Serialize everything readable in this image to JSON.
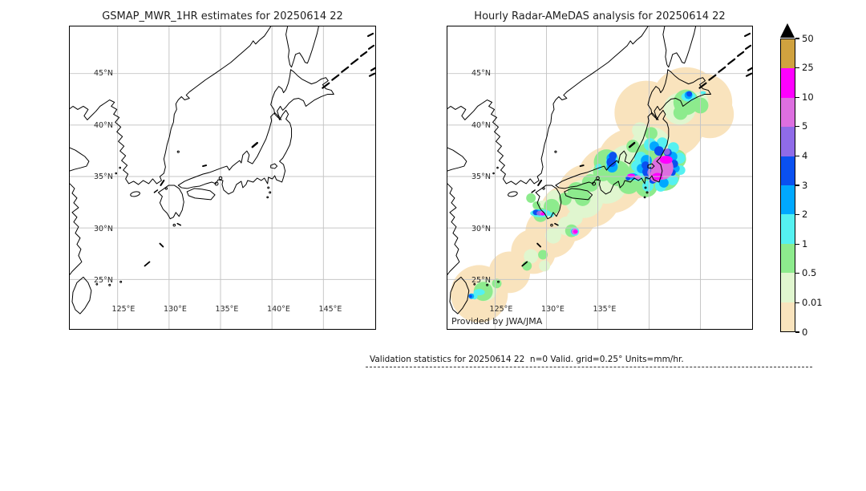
{
  "titles": {
    "left": "GSMAP_MWR_1HR estimates for 20250614 22",
    "right": "Hourly Radar-AMeDAS analysis for 20250614 22"
  },
  "maps": {
    "lat_labels": [
      "45°N",
      "40°N",
      "35°N",
      "30°N",
      "25°N"
    ],
    "lon_labels_left": [
      "125°E",
      "130°E",
      "135°E",
      "140°E",
      "145°E"
    ],
    "lon_labels_right": [
      "125°E",
      "130°E",
      "135°E"
    ],
    "credit": "Provided by JWA/JMA"
  },
  "colorbar": {
    "tick_labels": [
      "50",
      "25",
      "10",
      "5",
      "4",
      "3",
      "2",
      "1",
      "0.5",
      "0.01",
      "0"
    ],
    "segment_colors_top_to_bottom": [
      "#d0a23f",
      "#ff00ff",
      "#dd6fe0",
      "#8f6be8",
      "#0a50f0",
      "#00a8ff",
      "#55f1f1",
      "#8deb8d",
      "#e0f6cf",
      "#f9e3bd"
    ],
    "over_marker": "black-triangle"
  },
  "footer": {
    "validation_text": "Validation statistics for 20250614 22  n=0 Valid. grid=0.25° Units=mm/hr."
  },
  "chart_data": {
    "type": "heatmap",
    "panels": [
      {
        "title": "GSMAP_MWR_1HR estimates for 20250614 22",
        "content": "Map of Japan region with coastlines and lat/lon grid only; no precipitation estimates plotted (n=0, no satellite overpass)"
      },
      {
        "title": "Hourly Radar-AMeDAS analysis for 20250614 22",
        "content": "Radar-AMeDAS analyzed hourly precipitation over the Japanese archipelago; radar-coverage swath shaded 0-0.01, widespread light rain 0.01-2 mm/hr, heaviest cells 10-25 mm/hr over Kanto/Tokai (~35.5N 139E), near Ise Bay, west of Kyushu (~31.7N 129.5E), near 30N 132E; lighter cells over Hokkaido (~43.5N 142E) and near Okinawa (~24N 123E)"
      }
    ],
    "x_ticks": [
      "125°E",
      "130°E",
      "135°E",
      "140°E",
      "145°E"
    ],
    "y_ticks": [
      "25°N",
      "30°N",
      "35°N",
      "40°N",
      "45°N"
    ],
    "x_range_lon_deg_E": [
      120.3,
      150.2
    ],
    "y_range_lat_deg_N": [
      20.2,
      49.6
    ],
    "grid": "0.25°",
    "units": "mm/hr",
    "colorbar_levels_mm_hr": [
      0,
      0.01,
      0.5,
      1,
      2,
      3,
      4,
      5,
      10,
      25,
      50
    ],
    "colorbar_colors_low_to_high": [
      "#f9e3bd",
      "#e0f6cf",
      "#8deb8d",
      "#55f1f1",
      "#00a8ff",
      "#0a50f0",
      "#8f6be8",
      "#dd6fe0",
      "#ff00ff",
      "#d0a23f"
    ],
    "colorbar_over_color": "#000000"
  }
}
